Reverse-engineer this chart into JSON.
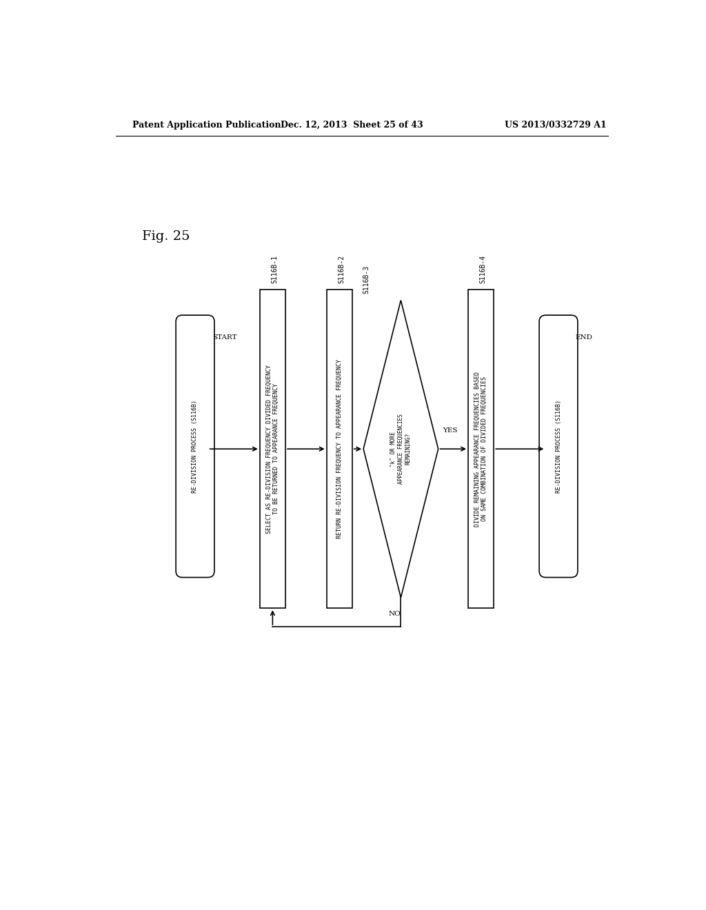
{
  "header_left": "Patent Application Publication",
  "header_middle": "Dec. 12, 2013  Sheet 25 of 43",
  "header_right": "US 2013/0332729 A1",
  "background_color": "#ffffff",
  "fig_label": "Fig. 25",
  "box1_label": "SELECT AS RE-DIVISION FREQUENCY DIVIDED FREQUENCY\nTO BE RETURNED TO APPEARANCE FREQUENCY",
  "box1_step": "S116B-1",
  "box2_label": "RETURN RE-DIVISION FREQUENCY TO APPEARANCE FREQUENCY",
  "box2_step": "S116B-2",
  "diamond_label": "\"k\" OR MORE\nAPPEARANCE FREQUENCIES\nREMAINING?",
  "diamond_step": "S116B-3",
  "box3_label": "DIVIDE REMAINING APPEARANCE FREQUENCIES BASED\nON SAME COMBINATION OF DIVIDED FREQUENCIES",
  "box3_step": "S116B-4",
  "pill_label": "RE-DIVISION PROCESS (S116B)",
  "start_label": "START",
  "end_label": "END",
  "yes_label": "YES",
  "no_label": "NO",
  "lw": 1.2
}
